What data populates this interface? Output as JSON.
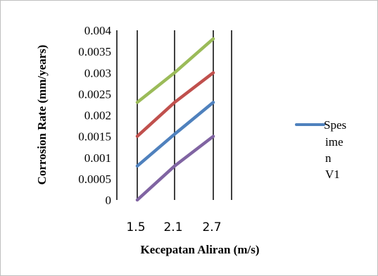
{
  "chart_data": {
    "type": "line",
    "x": [
      "1.5",
      "2.1",
      "2.7"
    ],
    "series": [
      {
        "name": "Spesimen V1",
        "color": "#4f81bd",
        "values": [
          0.0008,
          0.00155,
          0.0023
        ]
      },
      {
        "name": "",
        "color": "#c0504d",
        "values": [
          0.0015,
          0.0023,
          0.003
        ]
      },
      {
        "name": "",
        "color": "#9bbb59",
        "values": [
          0.0023,
          0.003,
          0.0038
        ]
      },
      {
        "name": "",
        "color": "#8064a2",
        "values": [
          0.0,
          0.0008,
          0.0015
        ]
      }
    ],
    "y_ticks": [
      "0.004",
      "0.0035",
      "0.003",
      "0.0025",
      "0.002",
      "0.0015",
      "0.001",
      "0.0005",
      "0"
    ],
    "ylim": [
      0,
      0.004
    ],
    "xlabel": "Kecepatan Aliran (m/s)",
    "ylabel": "Corrosion Rate (mm/years)",
    "grid": "vertical",
    "legend": {
      "position": "right",
      "lines": [
        "Spes",
        "ime",
        "n",
        "V1"
      ]
    }
  }
}
